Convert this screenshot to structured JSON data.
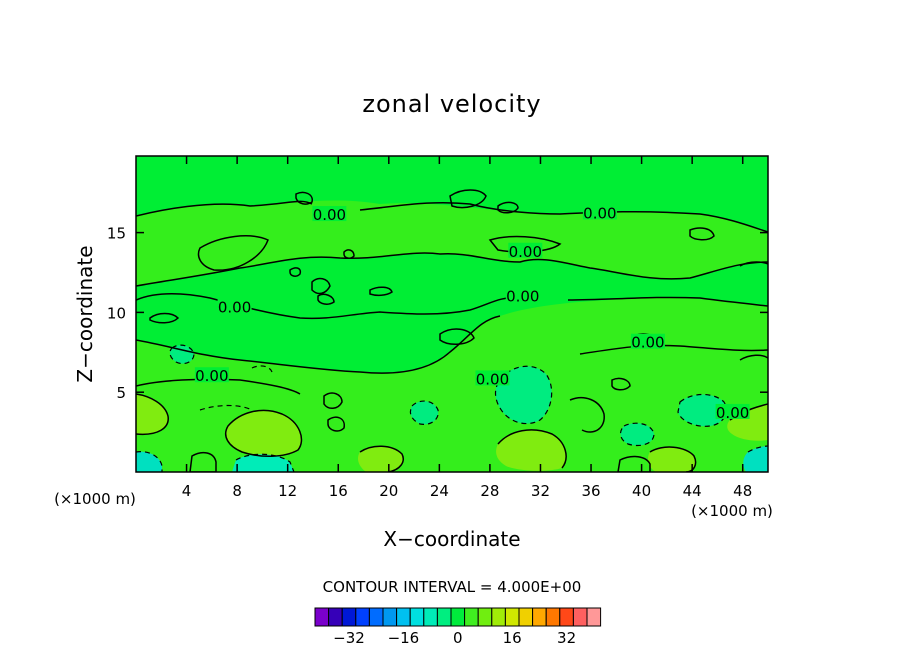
{
  "chart_data": {
    "type": "contour",
    "title": "zonal velocity",
    "xlabel": "X−coordinate",
    "ylabel": "Z−coordinate",
    "x_units_label": "(×1000 m)",
    "y_units_label": "(×1000 m)",
    "xlim": [
      0,
      50
    ],
    "ylim": [
      0,
      19.8
    ],
    "x_ticks": [
      4,
      8,
      12,
      16,
      20,
      24,
      28,
      32,
      36,
      40,
      44,
      48
    ],
    "y_ticks": [
      5,
      10,
      15
    ],
    "contour_interval_text": "CONTOUR INTERVAL = 4.000E+00",
    "contour_labels": [
      {
        "text": "0.00",
        "x": 15.3,
        "z": 16.1
      },
      {
        "text": "0.00",
        "x": 36.7,
        "z": 16.2
      },
      {
        "text": "0.00",
        "x": 30.8,
        "z": 13.8
      },
      {
        "text": "0.00",
        "x": 30.6,
        "z": 11.0
      },
      {
        "text": "0.00",
        "x": 7.8,
        "z": 10.3
      },
      {
        "text": "0.00",
        "x": 40.5,
        "z": 8.1
      },
      {
        "text": "0.00",
        "x": 6.0,
        "z": 6.0
      },
      {
        "text": "0.00",
        "x": 28.2,
        "z": 5.8
      },
      {
        "text": "0.00",
        "x": 47.2,
        "z": 3.7
      }
    ],
    "colorbar": {
      "levels": [
        -40,
        -36,
        -32,
        -28,
        -24,
        -20,
        -16,
        -12,
        -8,
        -4,
        0,
        4,
        8,
        12,
        16,
        20,
        24,
        28,
        32,
        36,
        40
      ],
      "colors": [
        "#7a00cc",
        "#3600b8",
        "#0018d6",
        "#0040ff",
        "#006cff",
        "#0098f0",
        "#00c0f0",
        "#00e0e0",
        "#00ecb8",
        "#00ee80",
        "#00ec3c",
        "#40ee20",
        "#70ee10",
        "#a0ec08",
        "#d0e800",
        "#f0d000",
        "#ffa800",
        "#ff7800",
        "#ff4818",
        "#ff6060",
        "#ff9898"
      ],
      "tick_labels": [
        "−32",
        "−16",
        "0",
        "16",
        "32"
      ],
      "tick_values": [
        -32,
        -16,
        0,
        16,
        32
      ]
    }
  }
}
